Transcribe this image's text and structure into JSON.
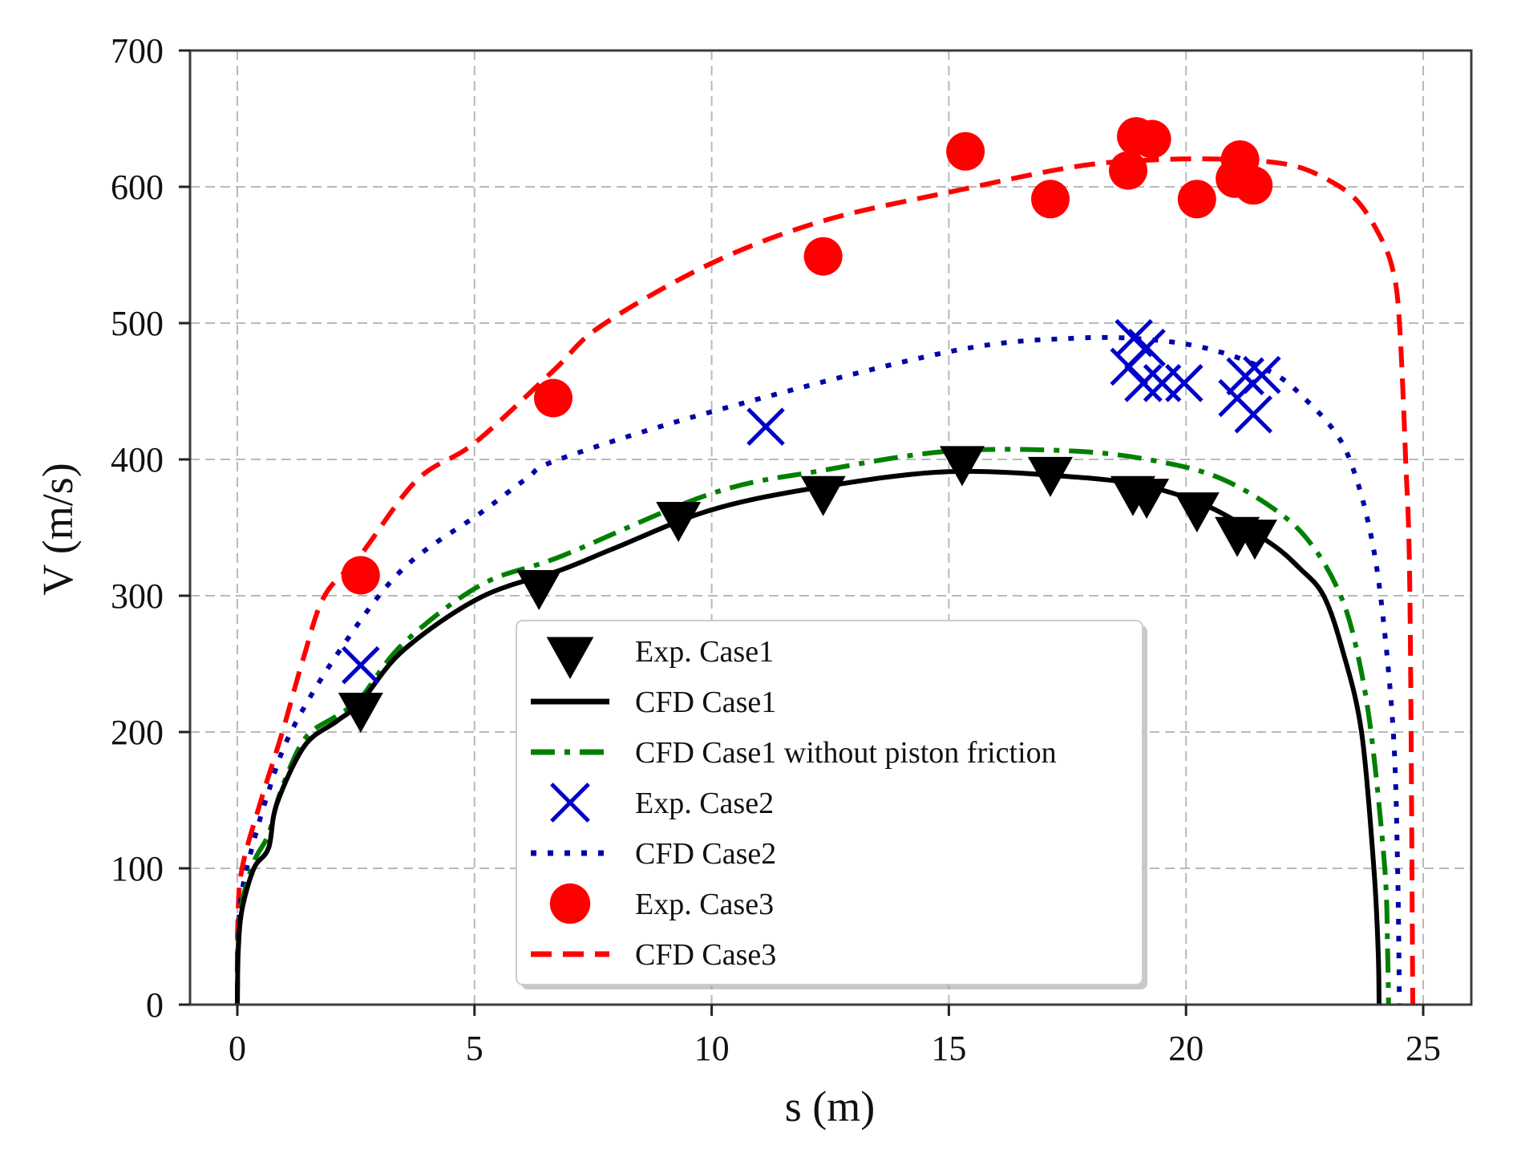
{
  "chart_data": {
    "type": "line",
    "title": "",
    "xlabel": "s (m)",
    "ylabel": "V (m/s)",
    "xlim": [
      -1.0,
      26.0
    ],
    "ylim": [
      0,
      700
    ],
    "xticks": [
      0,
      5,
      10,
      15,
      20,
      25
    ],
    "yticks": [
      0,
      100,
      200,
      300,
      400,
      500,
      600,
      700
    ],
    "grid": true,
    "legend_position": "lower center",
    "series": [
      {
        "name": "Exp. Case1",
        "kind": "scatter",
        "marker": "triangle-down",
        "color": "#000000",
        "x": [
          2.6,
          6.36,
          9.3,
          12.35,
          15.28,
          17.14,
          18.88,
          19.17,
          20.23,
          21.08,
          21.45
        ],
        "y": [
          219,
          309,
          359,
          378,
          400,
          392,
          378,
          376,
          366,
          348,
          346
        ]
      },
      {
        "name": "CFD Case1",
        "kind": "line",
        "style": "solid",
        "color": "#000000",
        "x": [
          0,
          0.02,
          0.1,
          0.35,
          0.66,
          0.83,
          1.42,
          2.1,
          2.6,
          3.5,
          5.14,
          6.83,
          7.96,
          10,
          12.35,
          15,
          17.7,
          19.2,
          20.5,
          21.76,
          22.4,
          22.9,
          23.3,
          23.7,
          23.96,
          24.05,
          24.07
        ],
        "y": [
          0,
          40,
          70,
          100,
          115,
          147,
          190,
          208,
          222,
          260,
          299,
          319,
          335,
          363,
          380,
          391,
          387,
          380,
          365,
          339,
          320,
          300,
          260,
          200,
          100,
          40,
          0
        ]
      },
      {
        "name": "CFD Case1 without piston friction",
        "kind": "line",
        "style": "dashdot",
        "color": "#008000",
        "x": [
          0,
          0.02,
          0.1,
          0.35,
          0.66,
          0.9,
          1.42,
          2.1,
          2.6,
          3.5,
          5.14,
          6.83,
          10,
          12.35,
          15,
          17.7,
          19.5,
          20.8,
          22.0,
          22.7,
          23.26,
          23.6,
          23.9,
          24.19,
          24.25,
          24.27
        ],
        "y": [
          0,
          45,
          75,
          105,
          125,
          155,
          195,
          212,
          225,
          265,
          308,
          329,
          375,
          392,
          406,
          406,
          398,
          385,
          360,
          335,
          300,
          260,
          200,
          100,
          40,
          0
        ]
      },
      {
        "name": "Exp. Case2",
        "kind": "scatter",
        "marker": "x",
        "color": "#0000cc",
        "x": [
          2.6,
          11.14,
          18.9,
          19.17,
          18.8,
          19.1,
          19.5,
          19.96,
          21.25,
          21.6,
          21.08,
          21.42
        ],
        "y": [
          249,
          424,
          489,
          482,
          468,
          456,
          456,
          456,
          461,
          462,
          445,
          433
        ]
      },
      {
        "name": "CFD Case2",
        "kind": "line",
        "style": "dotted",
        "color": "#0000aa",
        "x": [
          0,
          0.01,
          0.05,
          0.2,
          0.6,
          1.13,
          2.2,
          3.5,
          5.14,
          6.1,
          6.78,
          10,
          15,
          17.7,
          19.5,
          20.8,
          21.9,
          22.55,
          23.1,
          23.45,
          23.82,
          24.1,
          24.37,
          24.46,
          24.5
        ],
        "y": [
          0,
          40,
          70,
          100,
          150,
          200,
          262,
          320,
          361,
          386,
          400,
          435,
          479,
          489,
          487,
          478,
          462,
          443,
          422,
          400,
          357,
          300,
          200,
          100,
          0
        ]
      },
      {
        "name": "Exp. Case3",
        "kind": "scatter",
        "marker": "circle",
        "color": "#ff0000",
        "x": [
          2.6,
          6.66,
          12.35,
          15.35,
          17.14,
          18.95,
          19.28,
          18.78,
          20.23,
          21.14,
          21.03,
          21.42
        ],
        "y": [
          315,
          445,
          549,
          626,
          591,
          637,
          635,
          612,
          591,
          620,
          606,
          601
        ]
      },
      {
        "name": "CFD Case3",
        "kind": "line",
        "style": "dashed",
        "color": "#ff0000",
        "x": [
          0,
          0.01,
          0.1,
          0.5,
          0.95,
          1.4,
          1.84,
          2.6,
          3.79,
          5,
          6.66,
          7.67,
          10,
          12.35,
          15,
          17.7,
          19.5,
          21.0,
          22.2,
          23.0,
          23.6,
          24.07,
          24.36,
          24.5,
          24.63,
          24.72,
          24.78
        ],
        "y": [
          0,
          60,
          100,
          150,
          200,
          255,
          300,
          330,
          385,
          412,
          465,
          498,
          544,
          575,
          596,
          615,
          620,
          620,
          616,
          605,
          590,
          565,
          539,
          500,
          400,
          300,
          0
        ]
      }
    ]
  },
  "axes": {
    "x_tick_labels": [
      "0",
      "5",
      "10",
      "15",
      "20",
      "25"
    ],
    "y_tick_labels": [
      "0",
      "100",
      "200",
      "300",
      "400",
      "500",
      "600",
      "700"
    ],
    "xlabel": "s (m)",
    "ylabel": "V (m/s)"
  },
  "legend": {
    "items": [
      {
        "label": "Exp. Case1",
        "icon": "triangle-down-marker-icon",
        "color": "#000000"
      },
      {
        "label": "CFD Case1",
        "icon": "solid-line-icon",
        "color": "#000000"
      },
      {
        "label": "CFD Case1 without piston friction",
        "icon": "dashdot-line-icon",
        "color": "#008000"
      },
      {
        "label": "Exp. Case2",
        "icon": "x-marker-icon",
        "color": "#0000cc"
      },
      {
        "label": "CFD Case2",
        "icon": "dotted-line-icon",
        "color": "#0000aa"
      },
      {
        "label": "Exp. Case3",
        "icon": "circle-marker-icon",
        "color": "#ff0000"
      },
      {
        "label": "CFD Case3",
        "icon": "dashed-line-icon",
        "color": "#ff0000"
      }
    ]
  }
}
